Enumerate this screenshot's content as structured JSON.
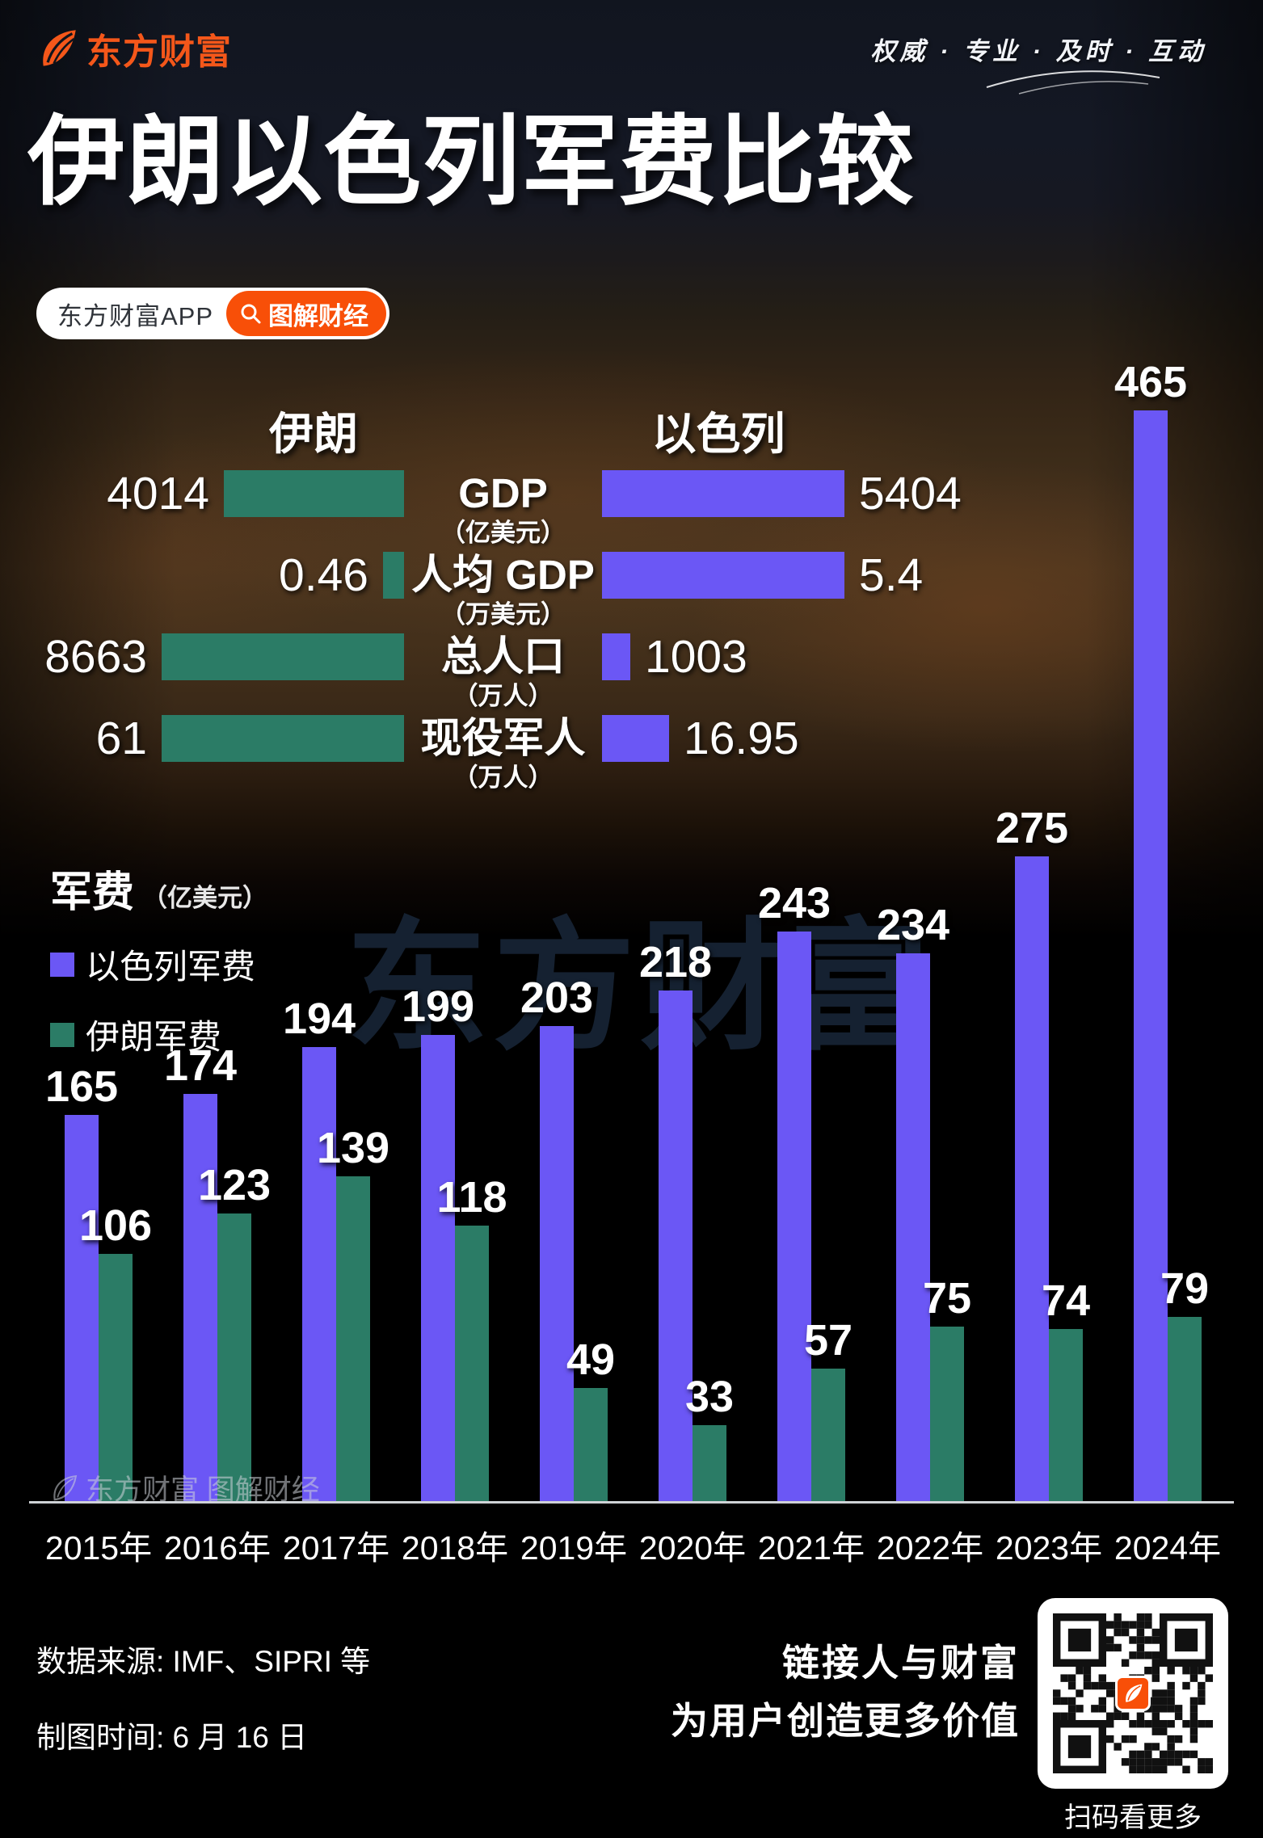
{
  "brand": {
    "logo_text": "东方财富",
    "slogan": "权威 · 专业 · 及时 · 互动"
  },
  "title": "伊朗以色列军费比较",
  "app_pill": {
    "app_label": "东方财富APP",
    "search_label": "图解财经",
    "search_icon": "magnifier",
    "accent_color": "#f84f08"
  },
  "comparison": {
    "left_header": "伊朗",
    "right_header": "以色列",
    "iran_color": "#2b7c66",
    "israel_color": "#6b57f5",
    "rows": [
      {
        "label": "GDP",
        "unit": "（亿美元）",
        "iran_value": 4014,
        "israel_value": 5404
      },
      {
        "label": "人均 GDP",
        "unit": "（万美元）",
        "iran_value": 0.46,
        "israel_value": 5.4
      },
      {
        "label": "总人口",
        "unit": "（万人）",
        "iran_value": 8663,
        "israel_value": 1003
      },
      {
        "label": "现役军人",
        "unit": "（万人）",
        "iran_value": 61,
        "israel_value": 16.95
      }
    ]
  },
  "chart_data": {
    "type": "bar",
    "title": "军费",
    "title_unit": "（亿美元）",
    "categories": [
      "2015年",
      "2016年",
      "2017年",
      "2018年",
      "2019年",
      "2020年",
      "2021年",
      "2022年",
      "2023年",
      "2024年"
    ],
    "series": [
      {
        "name": "以色列军费",
        "color": "#6b57f5",
        "values": [
          165,
          174,
          194,
          199,
          203,
          218,
          243,
          234,
          275,
          465
        ]
      },
      {
        "name": "伊朗军费",
        "color": "#2b7c66",
        "values": [
          106,
          123,
          139,
          118,
          49,
          33,
          57,
          75,
          74,
          79
        ]
      }
    ],
    "ylim": [
      0,
      465
    ],
    "grid": false,
    "legend_position": "top-left",
    "value_labels": true
  },
  "watermarks": {
    "center": "东方财富",
    "bottom": "东方财富 图解财经"
  },
  "footer": {
    "source": "数据来源: IMF、SIPRI 等",
    "date": "制图时间: 6 月 16 日",
    "slogan_line1": "链接人与财富",
    "slogan_line2": "为用户创造更多价值",
    "qr_caption": "扫码看更多"
  }
}
